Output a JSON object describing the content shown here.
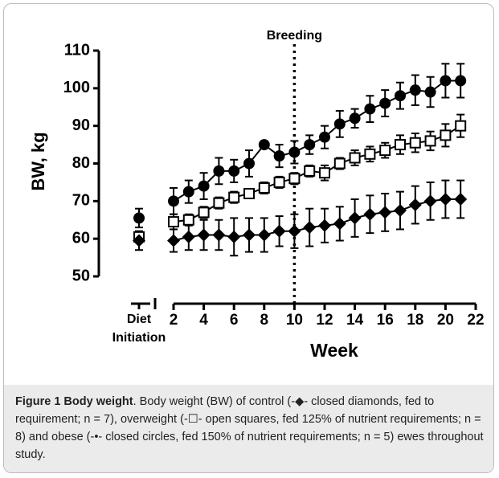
{
  "chart_data": {
    "type": "line",
    "ylabel": "BW, kg",
    "xlabel": "Week",
    "ylim": [
      50,
      110
    ],
    "yticks": [
      50,
      60,
      70,
      80,
      90,
      100,
      110
    ],
    "xlim": [
      2,
      22
    ],
    "xticks": [
      2,
      4,
      6,
      8,
      10,
      12,
      14,
      16,
      18,
      20,
      22
    ],
    "initiation_label": [
      "Diet",
      "Initiation"
    ],
    "annotation": {
      "x": 10,
      "label": "Breeding"
    },
    "x": [
      2,
      3,
      4,
      5,
      6,
      7,
      8,
      9,
      10,
      11,
      12,
      13,
      14,
      15,
      16,
      17,
      18,
      19,
      20,
      21
    ],
    "series": [
      {
        "marker": "circle",
        "color": "#000000",
        "initial": 65.5,
        "initial_error": 2.5,
        "values": [
          70,
          72.5,
          74,
          78,
          78,
          80,
          85,
          82,
          83,
          85,
          87,
          90.5,
          92,
          94.5,
          96,
          98,
          99.5,
          99,
          102,
          102
        ],
        "errors": [
          3.5,
          3,
          3.5,
          3.5,
          3,
          3.5,
          0,
          3,
          3,
          2.5,
          3,
          3.5,
          2.5,
          3.5,
          3.5,
          3.5,
          4,
          4,
          4.5,
          4.5
        ]
      },
      {
        "marker": "square",
        "color": "#000000",
        "initial": 60.5,
        "initial_error": 1.5,
        "values": [
          64.5,
          65,
          67,
          69.5,
          71,
          72,
          73.5,
          75,
          76,
          78,
          77.5,
          80,
          81.5,
          82.5,
          83.5,
          85,
          85.5,
          86,
          87.5,
          90
        ],
        "errors": [
          2,
          1.5,
          1.5,
          1.5,
          1.5,
          1,
          1.5,
          1.5,
          1.5,
          1.5,
          2,
          1.5,
          2,
          2,
          2,
          2.5,
          2.5,
          2.5,
          3,
          3
        ]
      },
      {
        "marker": "diamond",
        "color": "#000000",
        "initial": 59.5,
        "initial_error": 2.5,
        "values": [
          59.5,
          60.5,
          61,
          61,
          60.5,
          61,
          61,
          62,
          62,
          63,
          63.5,
          64,
          65.5,
          66.5,
          67,
          67.5,
          69,
          70,
          70.5,
          70.5
        ],
        "errors": [
          3,
          3.5,
          4,
          4,
          5,
          4.5,
          4.5,
          4,
          4.5,
          5,
          4.5,
          4.5,
          5,
          5,
          5,
          5,
          5,
          5,
          5,
          5
        ]
      }
    ]
  },
  "caption": {
    "label": "Figure 1 Body weight",
    "text": ". Body weight (BW) of control (-◆- closed diamonds, fed to requirement; n = 7), overweight (-☐- open squares, fed 125% of nutrient requirements; n = 8) and obese (-•- closed circles, fed 150% of nutrient requirements; n = 5) ewes throughout study."
  }
}
